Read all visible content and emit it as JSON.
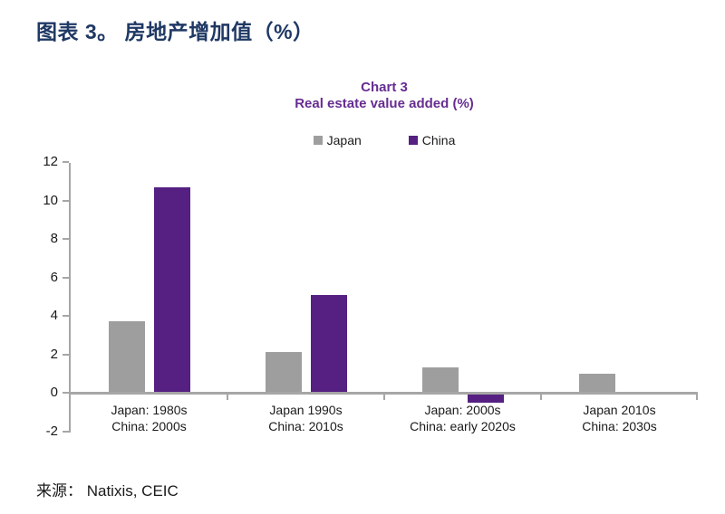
{
  "doc_title": "图表 3。 房地产增加值（%）",
  "source": "来源： Natixis, CEIC",
  "colors": {
    "doc_title": "#1F3864",
    "chart_heading": "#662D91",
    "axis": "#A6A6A6",
    "japan_bar": "#9E9E9E",
    "china_bar": "#552082"
  },
  "chart_data": {
    "type": "bar",
    "title": "Chart 3",
    "subtitle": "Real estate value added (%)",
    "categories": [
      [
        "Japan: 1980s",
        "China: 2000s"
      ],
      [
        "Japan 1990s",
        "China: 2010s"
      ],
      [
        "Japan: 2000s",
        "China: early 2020s"
      ],
      [
        "Japan 2010s",
        "China: 2030s"
      ]
    ],
    "series": [
      {
        "name": "Japan",
        "color": "#9E9E9E",
        "values": [
          3.7,
          2.1,
          1.3,
          1.0
        ]
      },
      {
        "name": "China",
        "color": "#552082",
        "values": [
          10.7,
          5.1,
          -0.5,
          null
        ]
      }
    ],
    "yticks": [
      12,
      10,
      8,
      6,
      4,
      2,
      0,
      -2
    ],
    "ylim": [
      -2,
      12
    ],
    "grid": false,
    "legend_position": "top-center"
  }
}
